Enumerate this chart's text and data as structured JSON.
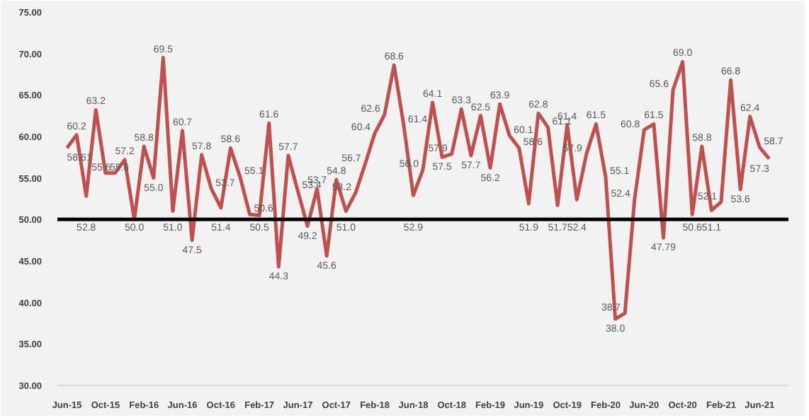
{
  "chart_data": {
    "type": "line",
    "x": [
      "2015-06",
      "2015-07",
      "2015-08",
      "2015-09",
      "2015-10",
      "2015-11",
      "2015-12",
      "2016-01",
      "2016-02",
      "2016-03",
      "2016-04",
      "2016-05",
      "2016-06",
      "2016-07",
      "2016-08",
      "2016-09",
      "2016-10",
      "2016-11",
      "2016-12",
      "2017-01",
      "2017-02",
      "2017-03",
      "2017-04",
      "2017-05",
      "2017-06",
      "2017-07",
      "2017-08",
      "2017-09",
      "2017-10",
      "2017-11",
      "2017-12",
      "2018-01",
      "2018-02",
      "2018-03",
      "2018-04",
      "2018-05",
      "2018-06",
      "2018-07",
      "2018-08",
      "2018-09",
      "2018-10",
      "2018-11",
      "2018-12",
      "2019-01",
      "2019-02",
      "2019-03",
      "2019-04",
      "2019-05",
      "2019-06",
      "2019-07",
      "2019-08",
      "2019-09",
      "2019-10",
      "2019-11",
      "2019-12",
      "2020-01",
      "2020-02",
      "2020-03",
      "2020-04",
      "2020-05",
      "2020-06",
      "2020-07",
      "2020-08",
      "2020-09",
      "2020-10",
      "2020-11",
      "2020-12",
      "2021-01",
      "2021-02",
      "2021-03",
      "2021-04",
      "2021-05",
      "2021-06",
      "2021-07"
    ],
    "series": [
      {
        "color": "#c0504d",
        "values": [
          58.61,
          60.2,
          52.8,
          63.2,
          55.6,
          55.6,
          57.2,
          50.0,
          58.8,
          55.0,
          69.5,
          51.0,
          60.7,
          47.5,
          57.8,
          53.7,
          51.4,
          58.6,
          55.1,
          50.6,
          50.5,
          61.6,
          44.3,
          57.7,
          53.4,
          49.2,
          53.7,
          45.6,
          54.8,
          51.0,
          53.2,
          56.7,
          60.4,
          62.6,
          68.6,
          61.4,
          52.9,
          56.0,
          64.1,
          57.5,
          57.9,
          63.3,
          57.7,
          62.5,
          56.2,
          63.9,
          60.1,
          58.6,
          51.9,
          62.8,
          61.1,
          51.7,
          61.4,
          52.4,
          57.9,
          61.5,
          55.1,
          38.0,
          38.7,
          52.4,
          60.8,
          61.5,
          47.79,
          65.6,
          69.0,
          50.6,
          58.8,
          51.1,
          52.1,
          66.8,
          53.6,
          62.4,
          58.7,
          57.3
        ],
        "value_labels": [
          "58.61",
          "60.2",
          "52.8",
          "63.2",
          "55.6",
          "55.6",
          "57.2",
          "50.0",
          "58.8",
          "55.0",
          "69.5",
          "51.0",
          "60.7",
          "47.5",
          "57.8",
          "53.7",
          "51.4",
          "58.6",
          "55.1",
          "50.6",
          "50.5",
          "61.6",
          "44.3",
          "57.7",
          "53.4",
          "49.2",
          "53.7",
          "45.6",
          "54.8",
          "51.0",
          "53.2",
          "56.7",
          "60.4",
          "62.6",
          "68.6",
          "61.4",
          "52.9",
          "56.0",
          "64.1",
          "57.5",
          "57.9",
          "63.3",
          "57.7",
          "62.5",
          "56.2",
          "63.9",
          "60.1",
          "58.6",
          "51.9",
          "62.8",
          "61.1",
          "51.7",
          "61.4",
          "52.4",
          "57.9",
          "61.5",
          "55.1",
          "38.0",
          "38.7",
          "52.4",
          "60.8",
          "61.5",
          "47.79",
          "65.6",
          "69.0",
          "50.6",
          "58.8",
          "51.1",
          "52.1",
          "66.8",
          "53.6",
          "62.4",
          "58.7",
          "57.3"
        ]
      }
    ],
    "xlim": [
      "2015-05",
      "2021-09"
    ],
    "xticks": [
      {
        "value": "2015-06",
        "label": "Jun-15"
      },
      {
        "value": "2015-10",
        "label": "Oct-15"
      },
      {
        "value": "2016-02",
        "label": "Feb-16"
      },
      {
        "value": "2016-06",
        "label": "Jun-16"
      },
      {
        "value": "2016-10",
        "label": "Oct-16"
      },
      {
        "value": "2017-02",
        "label": "Feb-17"
      },
      {
        "value": "2017-06",
        "label": "Jun-17"
      },
      {
        "value": "2017-10",
        "label": "Oct-17"
      },
      {
        "value": "2018-02",
        "label": "Feb-18"
      },
      {
        "value": "2018-06",
        "label": "Jun-18"
      },
      {
        "value": "2018-10",
        "label": "Oct-18"
      },
      {
        "value": "2019-02",
        "label": "Feb-19"
      },
      {
        "value": "2019-06",
        "label": "Jun-19"
      },
      {
        "value": "2019-10",
        "label": "Oct-19"
      },
      {
        "value": "2020-02",
        "label": "Feb-20"
      },
      {
        "value": "2020-06",
        "label": "Jun-20"
      },
      {
        "value": "2020-10",
        "label": "Oct-20"
      },
      {
        "value": "2021-02",
        "label": "Feb-21"
      },
      {
        "value": "2021-06",
        "label": "Jun-21"
      }
    ],
    "ylim": [
      30,
      75
    ],
    "yticks": [
      {
        "value": 30,
        "label": "30.00"
      },
      {
        "value": 35,
        "label": "35.00"
      },
      {
        "value": 40,
        "label": "40.00"
      },
      {
        "value": 45,
        "label": "45.00"
      },
      {
        "value": 50,
        "label": "50.00"
      },
      {
        "value": 55,
        "label": "55.00"
      },
      {
        "value": 60,
        "label": "60.00"
      },
      {
        "value": 65,
        "label": "65.00"
      },
      {
        "value": 70,
        "label": "70.00"
      },
      {
        "value": 75,
        "label": "75.00"
      }
    ],
    "ref_lines": [
      {
        "axis": "y",
        "value": 50,
        "color": "#000000"
      }
    ]
  }
}
